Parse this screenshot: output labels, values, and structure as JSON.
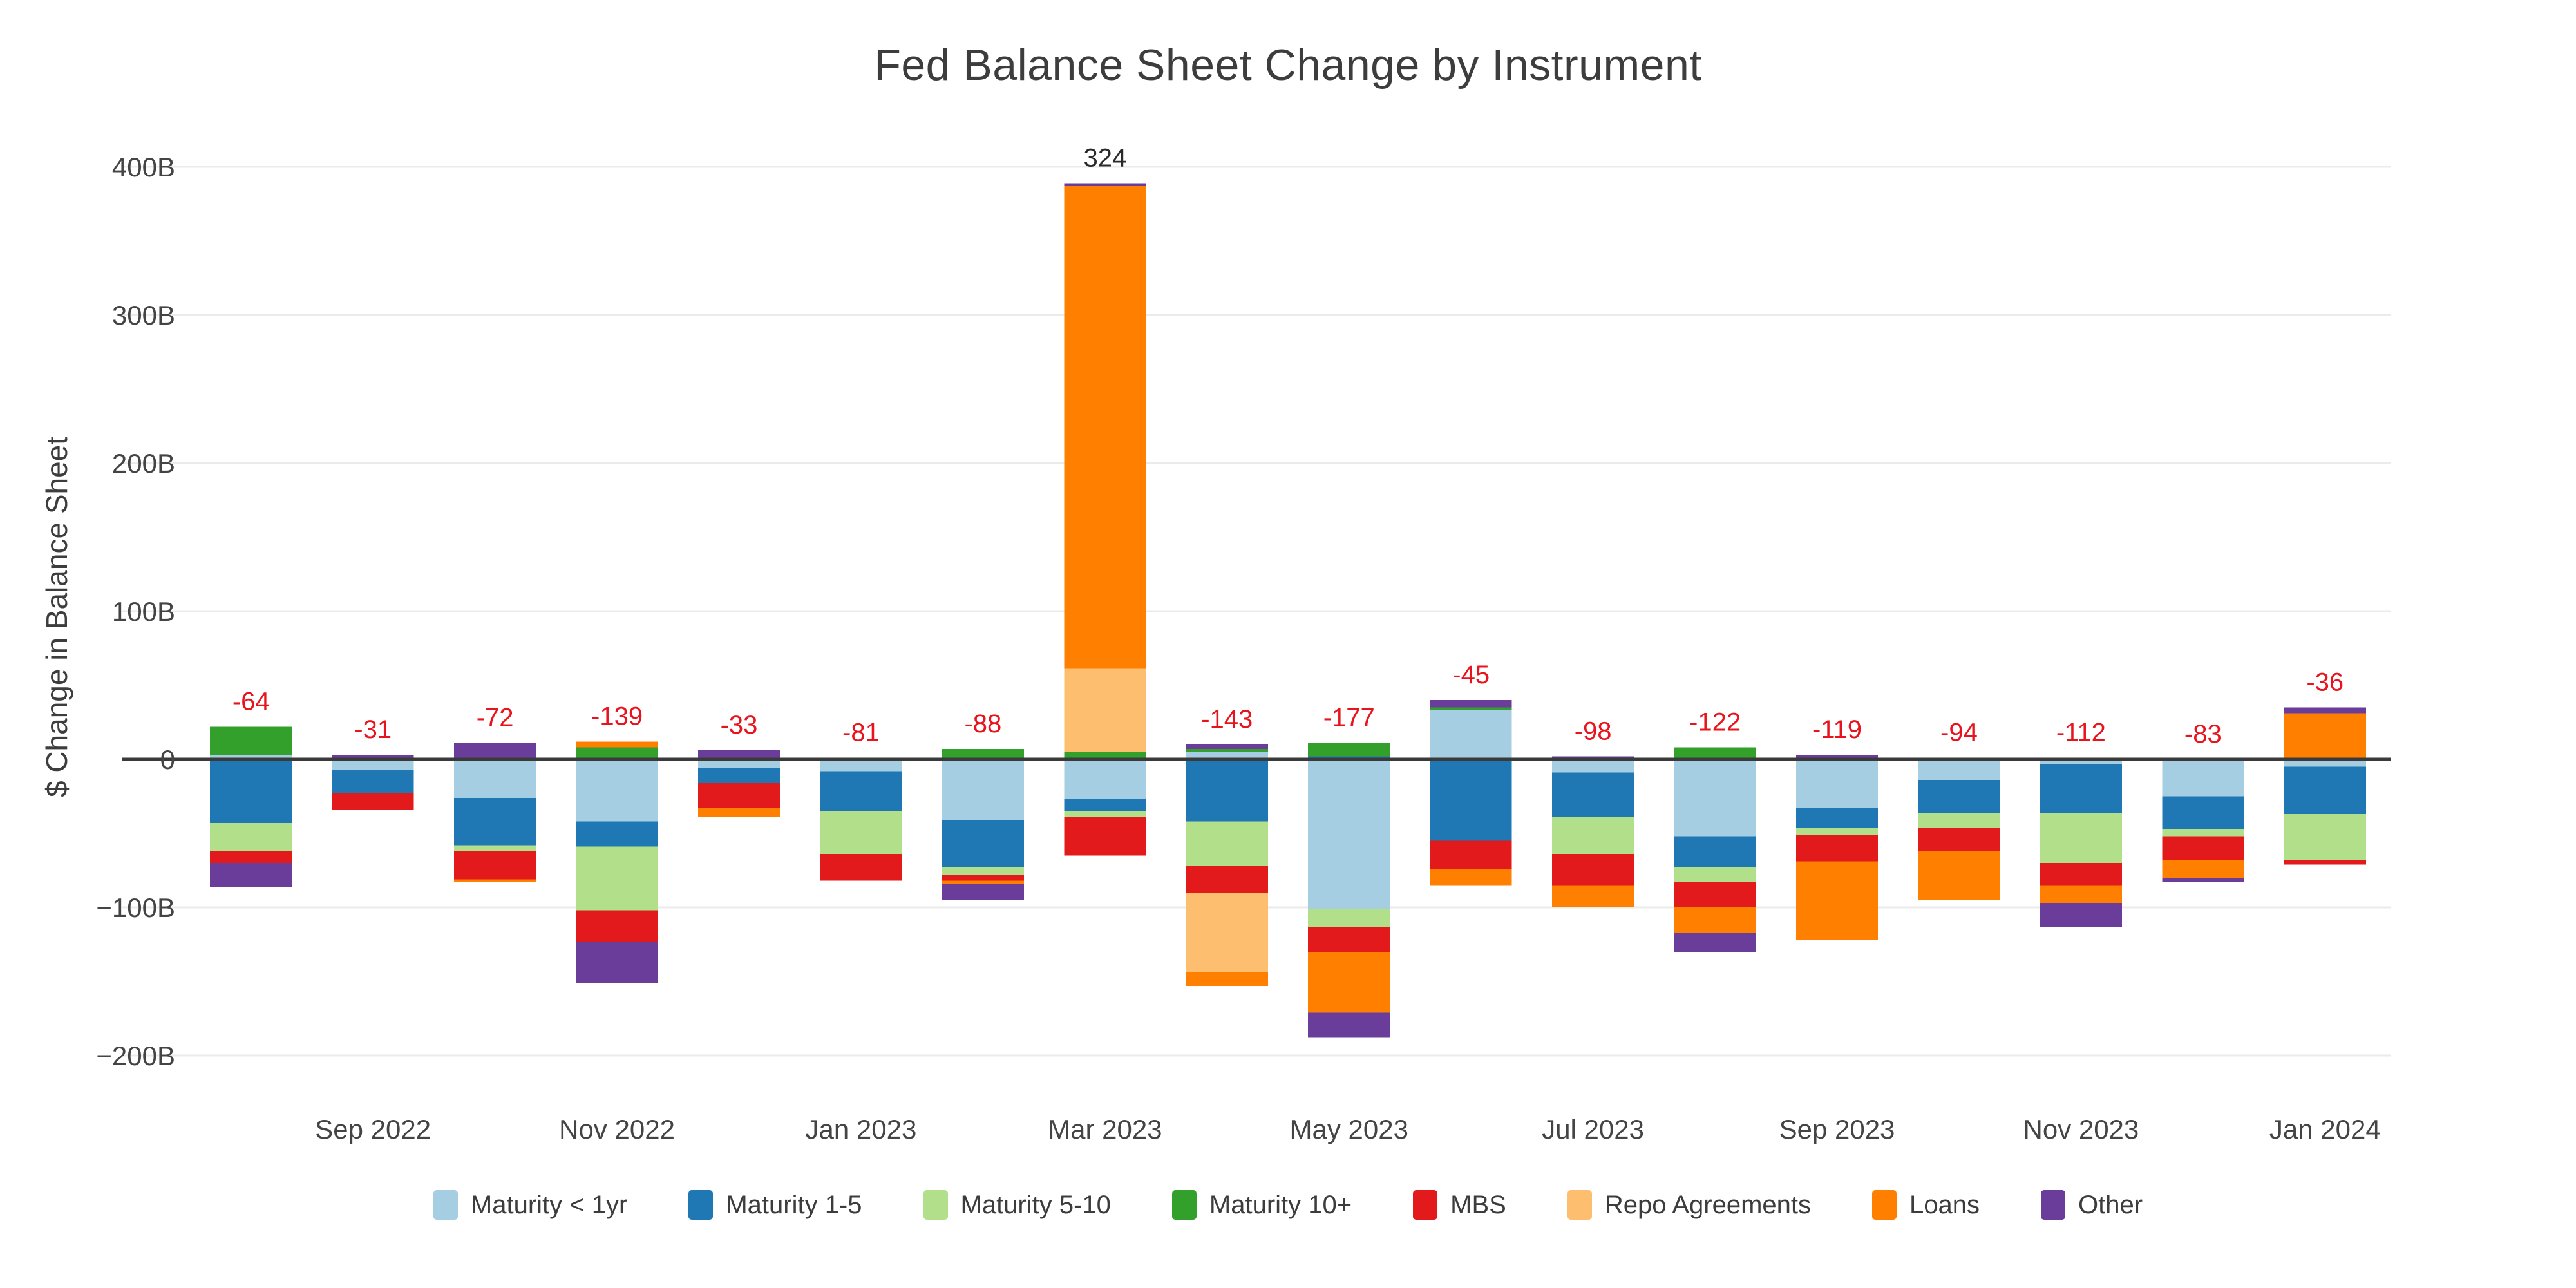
{
  "title": "Fed Balance Sheet Change by Instrument",
  "y_axis": {
    "title": "$ Change in Balance Sheet",
    "tick_labels": [
      "400B",
      "300B",
      "200B",
      "100B",
      "0",
      "−100B",
      "−200B"
    ],
    "tick_values": [
      400,
      300,
      200,
      100,
      0,
      -100,
      -200
    ]
  },
  "x_axis": {
    "tick_labels": [
      "Sep 2022",
      "Nov 2022",
      "Jan 2023",
      "Mar 2023",
      "May 2023",
      "Jul 2023",
      "Sep 2023",
      "Nov 2023",
      "Jan 2024"
    ],
    "tick_indices": [
      1,
      3,
      5,
      7,
      9,
      11,
      13,
      15,
      17
    ]
  },
  "chart_data": {
    "type": "bar",
    "stacked": true,
    "title": "Fed Balance Sheet Change by Instrument",
    "ylabel": "$ Change in Balance Sheet",
    "ylim": [
      -230,
      450
    ],
    "grid": true,
    "legend_position": "bottom",
    "categories": [
      "Aug 2022",
      "Sep 2022",
      "Oct 2022",
      "Nov 2022",
      "Dec 2022",
      "Jan 2023",
      "Feb 2023",
      "Mar 2023",
      "Apr 2023",
      "May 2023",
      "Jun 2023",
      "Jul 2023",
      "Aug 2023",
      "Sep 2023",
      "Oct 2023",
      "Nov 2023",
      "Dec 2023",
      "Jan 2024"
    ],
    "series": [
      {
        "name": "Maturity < 1yr",
        "color": "#a6cee3",
        "values": [
          3,
          -7,
          -26,
          -42,
          -6,
          -8,
          -41,
          -27,
          5,
          -101,
          33,
          -9,
          -52,
          -33,
          -14,
          -3,
          -25,
          -5
        ]
      },
      {
        "name": "Maturity 1-5",
        "color": "#1f78b4",
        "values": [
          -43,
          -16,
          -32,
          -17,
          -10,
          -27,
          -32,
          -8,
          -42,
          2,
          -55,
          -30,
          -21,
          -13,
          -22,
          -33,
          -22,
          -32
        ]
      },
      {
        "name": "Maturity 5-10",
        "color": "#b2df8a",
        "values": [
          -19,
          0,
          -4,
          -43,
          0,
          -29,
          -5,
          -4,
          -30,
          -12,
          0,
          -25,
          -10,
          -5,
          -10,
          -34,
          -5,
          -31
        ]
      },
      {
        "name": "Maturity 10+",
        "color": "#33a02c",
        "values": [
          19,
          0,
          0,
          8,
          1,
          0,
          7,
          5,
          2,
          9,
          2,
          0,
          8,
          1,
          0,
          1,
          0,
          0
        ]
      },
      {
        "name": "MBS",
        "color": "#e31a1c",
        "values": [
          -8,
          -11,
          -19,
          -21,
          -17,
          -18,
          -4,
          -26,
          -18,
          -17,
          -19,
          -21,
          -17,
          -18,
          -16,
          -15,
          -16,
          -3
        ]
      },
      {
        "name": "Repo Agreements",
        "color": "#fdbf6f",
        "values": [
          0,
          0,
          0,
          0,
          0,
          0,
          0,
          56,
          -54,
          0,
          0,
          0,
          0,
          0,
          0,
          0,
          0,
          0
        ]
      },
      {
        "name": "Loans",
        "color": "#ff7f00",
        "values": [
          0,
          0,
          -2,
          4,
          -6,
          0,
          -2,
          326,
          -9,
          -41,
          -11,
          -15,
          -17,
          -53,
          -33,
          -12,
          -12,
          31
        ]
      },
      {
        "name": "Other",
        "color": "#6a3d9a",
        "values": [
          -16,
          3,
          11,
          -28,
          5,
          1,
          -11,
          2,
          3,
          -17,
          5,
          2,
          -13,
          2,
          1,
          -16,
          -3,
          4
        ]
      }
    ],
    "totals": [
      -64,
      -31,
      -72,
      -139,
      -33,
      -81,
      -88,
      324,
      -143,
      -177,
      -45,
      -98,
      -122,
      -119,
      -94,
      -112,
      -83,
      -36
    ],
    "total_label_colors": {
      "positive": "#2a2a2a",
      "negative": "#e8131d"
    },
    "colors": {
      "gridline": "#ebebeb",
      "zero_line": "#3a3a3a",
      "axis_text": "#444444",
      "title_text": "#3d3d3d"
    }
  }
}
